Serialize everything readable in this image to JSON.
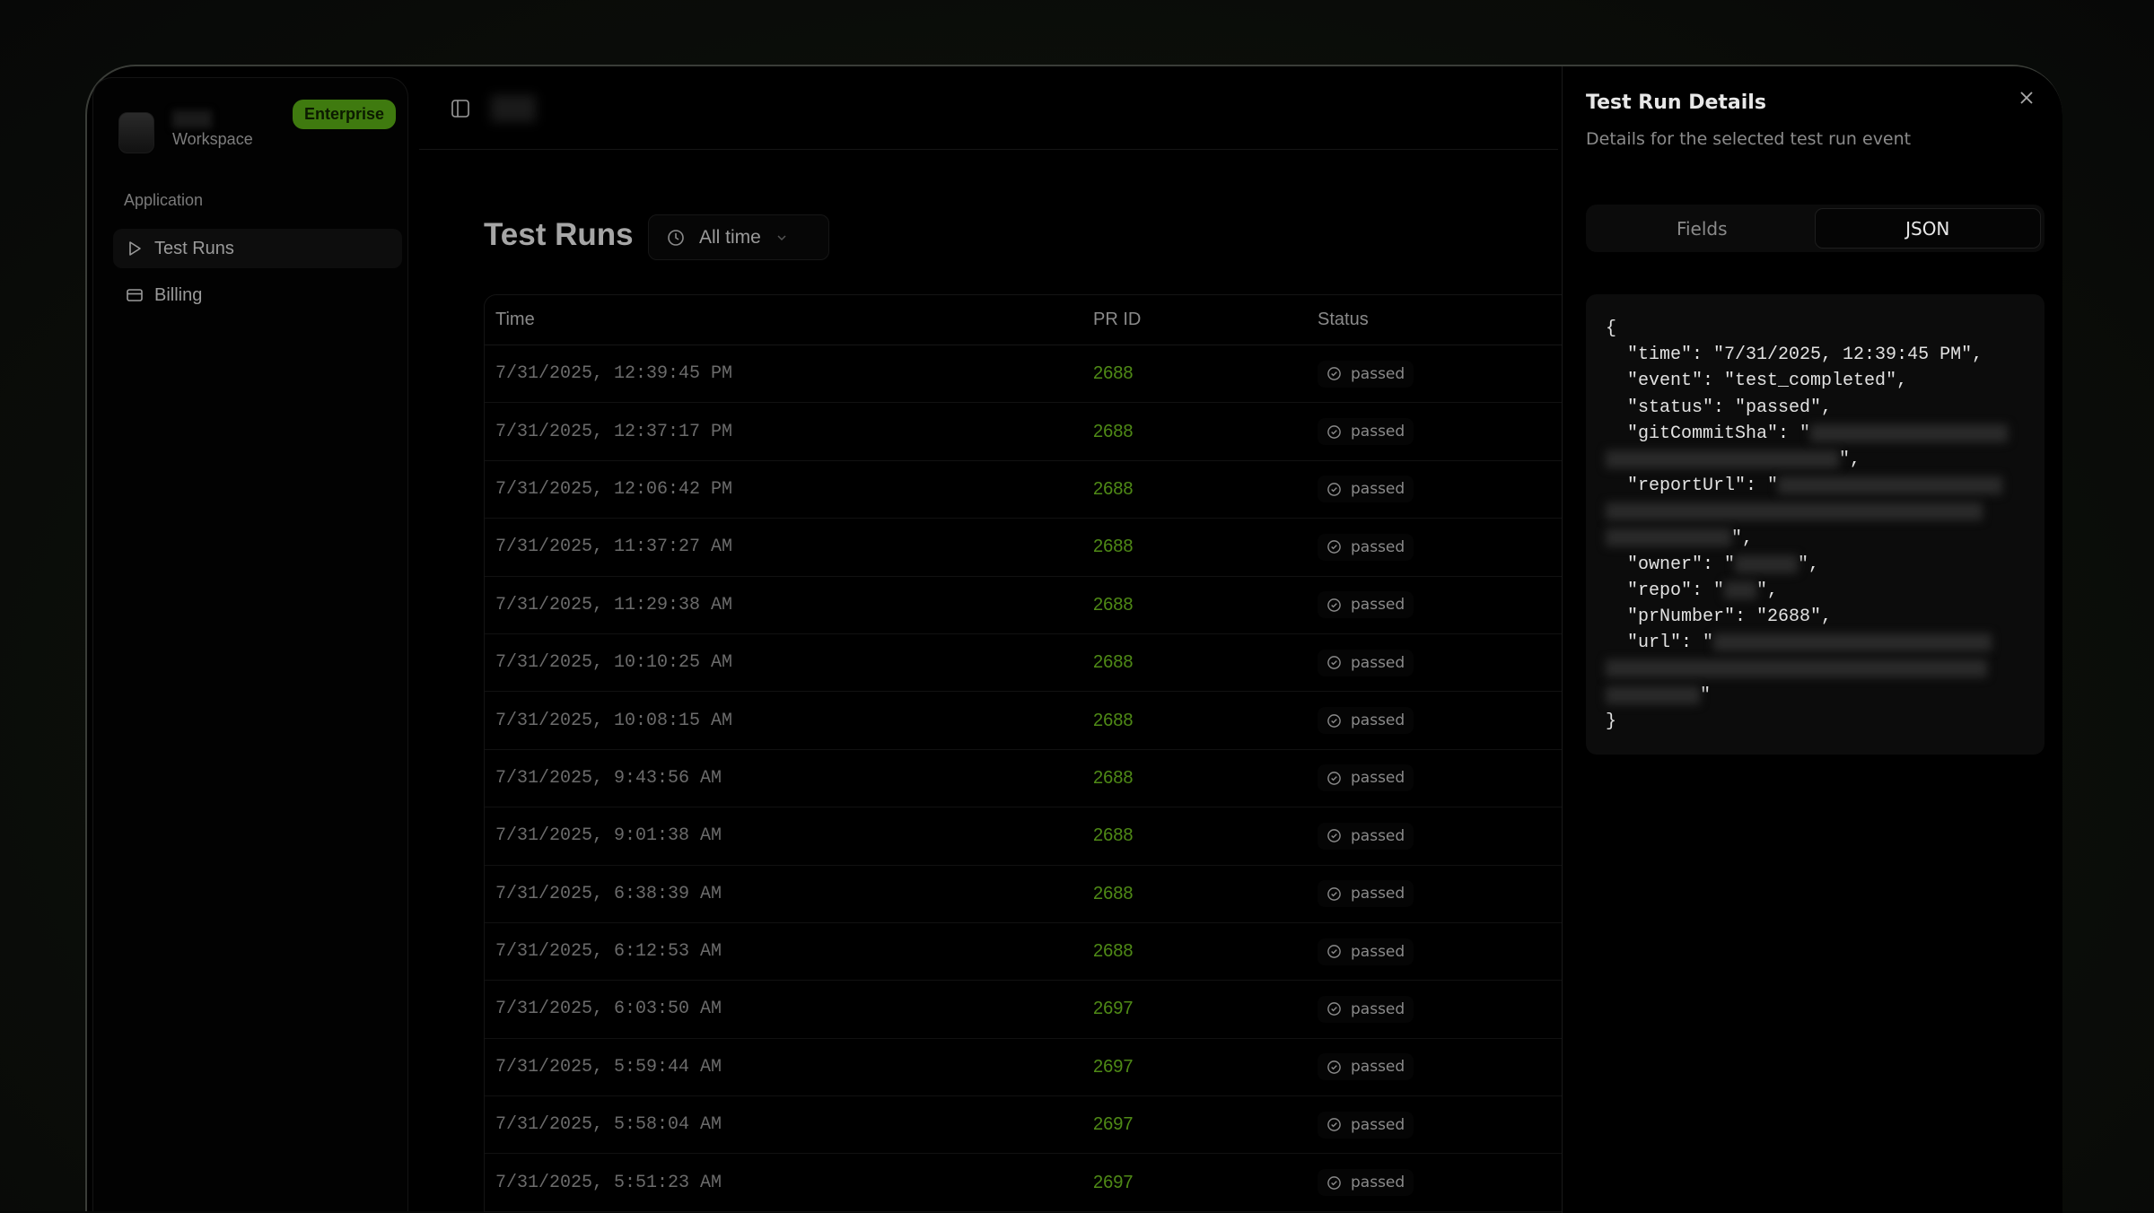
{
  "sidebar": {
    "workspace_label": "Workspace",
    "plan_badge": "Enterprise",
    "group_label": "Application",
    "items": [
      {
        "label": "Test Runs",
        "icon": "play-icon",
        "active": true
      },
      {
        "label": "Billing",
        "icon": "credit-card-icon"
      }
    ]
  },
  "main": {
    "title": "Test Runs",
    "filter": {
      "label": "All time",
      "icon": "clock-icon"
    },
    "columns": [
      "Time",
      "PR ID",
      "Status"
    ],
    "rows": [
      {
        "time": "7/31/2025, 12:39:45 PM",
        "pr": "2688",
        "status": "passed"
      },
      {
        "time": "7/31/2025, 12:37:17 PM",
        "pr": "2688",
        "status": "passed"
      },
      {
        "time": "7/31/2025, 12:06:42 PM",
        "pr": "2688",
        "status": "passed"
      },
      {
        "time": "7/31/2025, 11:37:27 AM",
        "pr": "2688",
        "status": "passed"
      },
      {
        "time": "7/31/2025, 11:29:38 AM",
        "pr": "2688",
        "status": "passed"
      },
      {
        "time": "7/31/2025, 10:10:25 AM",
        "pr": "2688",
        "status": "passed"
      },
      {
        "time": "7/31/2025, 10:08:15 AM",
        "pr": "2688",
        "status": "passed"
      },
      {
        "time": "7/31/2025, 9:43:56 AM",
        "pr": "2688",
        "status": "passed"
      },
      {
        "time": "7/31/2025, 9:01:38 AM",
        "pr": "2688",
        "status": "passed"
      },
      {
        "time": "7/31/2025, 6:38:39 AM",
        "pr": "2688",
        "status": "passed"
      },
      {
        "time": "7/31/2025, 6:12:53 AM",
        "pr": "2688",
        "status": "passed"
      },
      {
        "time": "7/31/2025, 6:03:50 AM",
        "pr": "2697",
        "status": "passed"
      },
      {
        "time": "7/31/2025, 5:59:44 AM",
        "pr": "2697",
        "status": "passed"
      },
      {
        "time": "7/31/2025, 5:58:04 AM",
        "pr": "2697",
        "status": "passed"
      },
      {
        "time": "7/31/2025, 5:51:23 AM",
        "pr": "2697",
        "status": "passed"
      }
    ]
  },
  "details": {
    "title": "Test Run Details",
    "subtitle": "Details for the selected test run event",
    "tabs": [
      "Fields",
      "JSON"
    ],
    "active_tab": "JSON",
    "json": {
      "time": "7/31/2025, 12:39:45 PM",
      "event": "test_completed",
      "status": "passed",
      "prNumber": "2688"
    }
  },
  "colors": {
    "accent": "#4f8a16",
    "badge": "#3f7a0f"
  }
}
